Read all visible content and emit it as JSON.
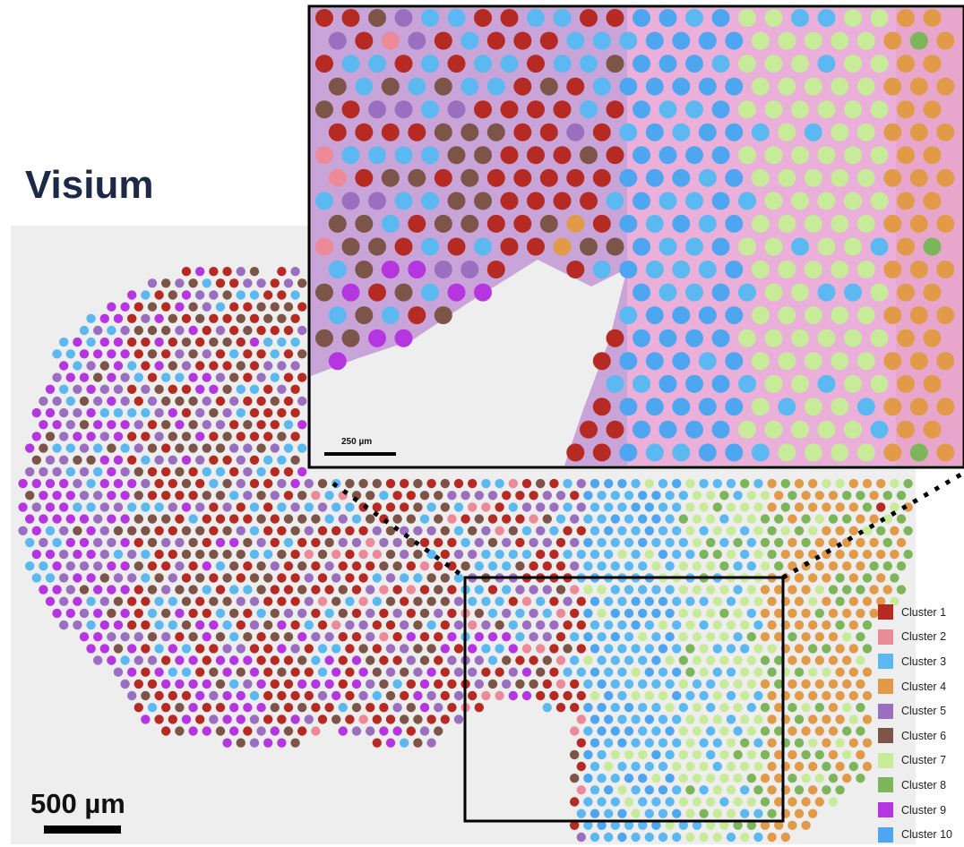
{
  "title": "Visium",
  "scale_bar_main": "500 µm",
  "scale_bar_inset": "250 µm",
  "legend": {
    "items": [
      {
        "label": "Cluster 1",
        "color": "#b52a22"
      },
      {
        "label": "Cluster 2",
        "color": "#ec8a9a"
      },
      {
        "label": "Cluster 3",
        "color": "#5cb8f0"
      },
      {
        "label": "Cluster 4",
        "color": "#e09a48"
      },
      {
        "label": "Cluster 5",
        "color": "#9b6fc0"
      },
      {
        "label": "Cluster 6",
        "color": "#7d5448"
      },
      {
        "label": "Cluster 7",
        "color": "#c8eb9a"
      },
      {
        "label": "Cluster 8",
        "color": "#7cb55a"
      },
      {
        "label": "Cluster 9",
        "color": "#b535e0"
      },
      {
        "label": "Cluster 10",
        "color": "#4fa6f0"
      }
    ]
  },
  "colors": {
    "background": "#ffffff",
    "slide": "#eeeeee",
    "tissue_pink": "#e8a8d8",
    "tissue_purple": "#b49ad2",
    "title": "#1c2a48"
  }
}
